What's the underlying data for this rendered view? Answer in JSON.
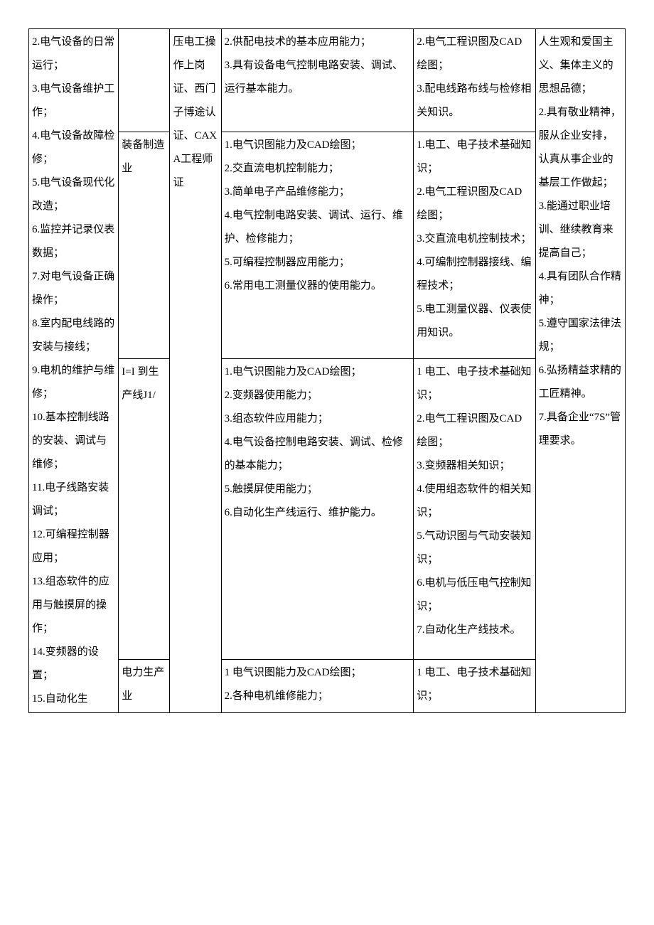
{
  "columns": {
    "widths": [
      "14%",
      "8%",
      "8%",
      "30%",
      "19%",
      "14%"
    ]
  },
  "col1_full": "2.电气设备的日常运行；\n3.电气设备维护工作；\n4.电气设备故障检修；\n5.电气设备现代化改造；\n6.监控并记录仪表数据；\n7.对电气设备正确操作；\n8.室内配电线路的安装与接线；\n9.电机的维护与维修；\n10.基本控制线路的安装、调试与维修；\n11.电子线路安装调试；\n12.可编程控制器应用；\n13.组态软件的应用与触摸屏的操作；\n14.变频器的设置；\n15.自动化生",
  "row1": {
    "c2": "",
    "c3": "压电工操作上岗证、西门子博途认证、CAXA工程师证",
    "c4": "2.供配电技术的基本应用能力；\n3.具有设备电气控制电路安装、调试、运行基本能力。",
    "c5": "2.电气工程识图及CAD绘图；\n3.配电线路布线与检修相关知识。"
  },
  "row2": {
    "c2": "装备制造业",
    "c4": "1.电气识图能力及CAD绘图；\n2.交直流电机控制能力；\n3.简单电子产品维修能力；\n4.电气控制电路安装、调试、运行、维护、检修能力；\n5.可编程控制器应用能力；\n6.常用电工测量仪器的使用能力。",
    "c5": "1.电工、电子技术基础知识；\n2.电气工程识图及CAD绘图；\n3.交直流电机控制技术；\n4.可编制控制器接线、编程技术；\n5.电工测量仪器、仪表使用知识。"
  },
  "row3": {
    "c2": "I=I 到生产线J1/",
    "c4": "1.电气识图能力及CAD绘图；\n2.变频器使用能力；\n3.组态软件应用能力；\n4.电气设备控制电路安装、调试、检修的基本能力；\n5.触摸屏使用能力；\n6.自动化生产线运行、维护能力。",
    "c5": "1 电工、电子技术基础知识；\n2.电气工程识图及CAD绘图；\n3.变频器相关知识；\n4.使用组态软件的相关知识；\n5.气动识图与气动安装知识；\n6.电机与低压电气控制知识；\n7.自动化生产线技术。"
  },
  "row4": {
    "c2": "电力生产业",
    "c4": "1 电气识图能力及CAD绘图；\n2.各种电机维修能力；",
    "c5": "1 电工、电子技术基础知识；"
  },
  "col6_full": "人生观和爱国主义、集体主义的思想品德；\n2.具有敬业精神，服从企业安排，认真从事企业的基层工作做起；\n3.能通过职业培训、继续教育来提高自己；\n4.具有团队合作精神；\n5.遵守国家法律法规；\n6.弘扬精益求精的工匠精神。\n7.具备企业“7S”管理要求。"
}
